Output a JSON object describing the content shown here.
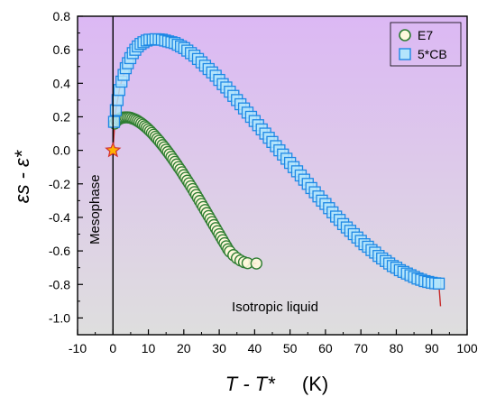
{
  "chart_data": {
    "type": "scatter",
    "xlim": [
      -10,
      100
    ],
    "ylim": [
      -1.1,
      0.8
    ],
    "x_ticks": [
      -10,
      0,
      10,
      20,
      30,
      40,
      50,
      60,
      70,
      80,
      90,
      100
    ],
    "y_ticks": [
      -1.0,
      -0.8,
      -0.6,
      -0.4,
      -0.2,
      0.0,
      0.2,
      0.4,
      0.6,
      0.8
    ],
    "y_tick_labels": [
      "-1.0",
      "-0.8",
      "-0.6",
      "-0.4",
      "-0.2",
      "0.0",
      "0.2",
      "0.4",
      "0.6",
      "0.8"
    ],
    "xlabel_main": "T - T*",
    "xlabel_unit": "(K)",
    "ylabel": "εs - ε*",
    "grid": false,
    "legend_position": "top-right",
    "background_gradient": {
      "top": "#dcb8f4",
      "bottom": "#dedede"
    },
    "annotations": [
      {
        "text": "Mesophase"
      },
      {
        "text": "Isotropic liquid"
      }
    ],
    "vertical_line_x": 0,
    "star_point": {
      "x": 0,
      "y": 0.0,
      "fill": "#ffb300",
      "stroke": "#d32f2f"
    },
    "series": [
      {
        "name": "E7",
        "marker": "circle",
        "fill": "#fff8dc",
        "stroke": "#2e7d32",
        "fit_color": "#c62828",
        "points": [
          [
            0.5,
            0.16
          ],
          [
            1,
            0.175
          ],
          [
            1.5,
            0.184
          ],
          [
            2,
            0.19
          ],
          [
            2.5,
            0.194
          ],
          [
            3,
            0.196
          ],
          [
            3.5,
            0.197
          ],
          [
            4,
            0.197
          ],
          [
            4.5,
            0.196
          ],
          [
            5,
            0.194
          ],
          [
            5.5,
            0.19
          ],
          [
            6,
            0.186
          ],
          [
            6.5,
            0.181
          ],
          [
            7,
            0.175
          ],
          [
            7.5,
            0.168
          ],
          [
            8,
            0.161
          ],
          [
            8.5,
            0.153
          ],
          [
            9,
            0.144
          ],
          [
            9.5,
            0.135
          ],
          [
            10,
            0.125
          ],
          [
            10.5,
            0.115
          ],
          [
            11,
            0.104
          ],
          [
            11.5,
            0.093
          ],
          [
            12,
            0.081
          ],
          [
            12.5,
            0.069
          ],
          [
            13,
            0.057
          ],
          [
            13.5,
            0.044
          ],
          [
            14,
            0.031
          ],
          [
            14.5,
            0.018
          ],
          [
            15,
            0.004
          ],
          [
            15.5,
            -0.01
          ],
          [
            16,
            -0.024
          ],
          [
            16.5,
            -0.039
          ],
          [
            17,
            -0.054
          ],
          [
            17.5,
            -0.069
          ],
          [
            18,
            -0.084
          ],
          [
            18.5,
            -0.1
          ],
          [
            19,
            -0.115
          ],
          [
            19.5,
            -0.131
          ],
          [
            20,
            -0.148
          ],
          [
            20.5,
            -0.164
          ],
          [
            21,
            -0.181
          ],
          [
            21.5,
            -0.197
          ],
          [
            22,
            -0.214
          ],
          [
            22.5,
            -0.231
          ],
          [
            23,
            -0.249
          ],
          [
            23.5,
            -0.266
          ],
          [
            24,
            -0.284
          ],
          [
            24.5,
            -0.302
          ],
          [
            25,
            -0.32
          ],
          [
            25.5,
            -0.338
          ],
          [
            26,
            -0.356
          ],
          [
            26.5,
            -0.374
          ],
          [
            27,
            -0.392
          ],
          [
            27.5,
            -0.41
          ],
          [
            28,
            -0.428
          ],
          [
            28.5,
            -0.446
          ],
          [
            29,
            -0.464
          ],
          [
            29.5,
            -0.482
          ],
          [
            30,
            -0.5
          ],
          [
            30.5,
            -0.518
          ],
          [
            31,
            -0.536
          ],
          [
            31.5,
            -0.554
          ],
          [
            32,
            -0.572
          ],
          [
            32.5,
            -0.59
          ],
          [
            33,
            -0.604
          ],
          [
            34,
            -0.625
          ],
          [
            35,
            -0.643
          ],
          [
            36,
            -0.657
          ],
          [
            37,
            -0.667
          ],
          [
            38,
            -0.673
          ],
          [
            40.5,
            -0.675
          ]
        ]
      },
      {
        "name": "5*CB",
        "marker": "square",
        "fill": "#b3e5fc",
        "stroke": "#1e88e5",
        "fit_color": "#c62828",
        "points": [
          [
            0.3,
            0.17
          ],
          [
            0.8,
            0.24
          ],
          [
            1.3,
            0.3
          ],
          [
            1.8,
            0.36
          ],
          [
            2.4,
            0.41
          ],
          [
            3,
            0.45
          ],
          [
            3.6,
            0.49
          ],
          [
            4.2,
            0.52
          ],
          [
            4.9,
            0.55
          ],
          [
            5.6,
            0.58
          ],
          [
            6.3,
            0.6
          ],
          [
            7,
            0.62
          ],
          [
            7.8,
            0.635
          ],
          [
            8.6,
            0.645
          ],
          [
            9.5,
            0.655
          ],
          [
            10.3,
            0.66
          ],
          [
            11.2,
            0.66
          ],
          [
            12,
            0.663
          ],
          [
            12.9,
            0.662
          ],
          [
            13.8,
            0.66
          ],
          [
            14.7,
            0.655
          ],
          [
            15.6,
            0.65
          ],
          [
            16.5,
            0.645
          ],
          [
            17.4,
            0.64
          ],
          [
            18.3,
            0.63
          ],
          [
            19.2,
            0.62
          ],
          [
            20.1,
            0.61
          ],
          [
            21,
            0.595
          ],
          [
            22,
            0.58
          ],
          [
            23,
            0.565
          ],
          [
            24,
            0.545
          ],
          [
            25,
            0.525
          ],
          [
            26,
            0.505
          ],
          [
            27,
            0.485
          ],
          [
            28,
            0.465
          ],
          [
            29,
            0.445
          ],
          [
            30,
            0.42
          ],
          [
            31,
            0.395
          ],
          [
            32,
            0.375
          ],
          [
            33,
            0.35
          ],
          [
            34,
            0.325
          ],
          [
            35,
            0.3
          ],
          [
            36,
            0.275
          ],
          [
            37,
            0.25
          ],
          [
            38,
            0.225
          ],
          [
            39,
            0.2
          ],
          [
            40,
            0.175
          ],
          [
            41,
            0.15
          ],
          [
            42,
            0.125
          ],
          [
            43,
            0.1
          ],
          [
            44,
            0.075
          ],
          [
            45,
            0.05
          ],
          [
            46,
            0.025
          ],
          [
            47,
            0.0
          ],
          [
            48,
            -0.025
          ],
          [
            49,
            -0.05
          ],
          [
            50,
            -0.075
          ],
          [
            51,
            -0.1
          ],
          [
            52,
            -0.125
          ],
          [
            53,
            -0.15
          ],
          [
            54,
            -0.175
          ],
          [
            55,
            -0.2
          ],
          [
            56,
            -0.225
          ],
          [
            57,
            -0.25
          ],
          [
            58,
            -0.275
          ],
          [
            59,
            -0.3
          ],
          [
            60,
            -0.32
          ],
          [
            61,
            -0.345
          ],
          [
            62,
            -0.37
          ],
          [
            63,
            -0.395
          ],
          [
            64,
            -0.415
          ],
          [
            65,
            -0.44
          ],
          [
            66,
            -0.46
          ],
          [
            67,
            -0.48
          ],
          [
            68,
            -0.5
          ],
          [
            69,
            -0.52
          ],
          [
            70,
            -0.54
          ],
          [
            71,
            -0.56
          ],
          [
            72,
            -0.575
          ],
          [
            73,
            -0.595
          ],
          [
            74,
            -0.61
          ],
          [
            75,
            -0.63
          ],
          [
            76,
            -0.645
          ],
          [
            77,
            -0.66
          ],
          [
            78,
            -0.675
          ],
          [
            79,
            -0.69
          ],
          [
            80,
            -0.7
          ],
          [
            81,
            -0.715
          ],
          [
            82,
            -0.725
          ],
          [
            83,
            -0.735
          ],
          [
            84,
            -0.745
          ],
          [
            85,
            -0.755
          ],
          [
            86,
            -0.765
          ],
          [
            87,
            -0.772
          ],
          [
            88,
            -0.78
          ],
          [
            89,
            -0.785
          ],
          [
            90,
            -0.79
          ],
          [
            91,
            -0.793
          ],
          [
            92,
            -0.795
          ]
        ]
      }
    ]
  }
}
